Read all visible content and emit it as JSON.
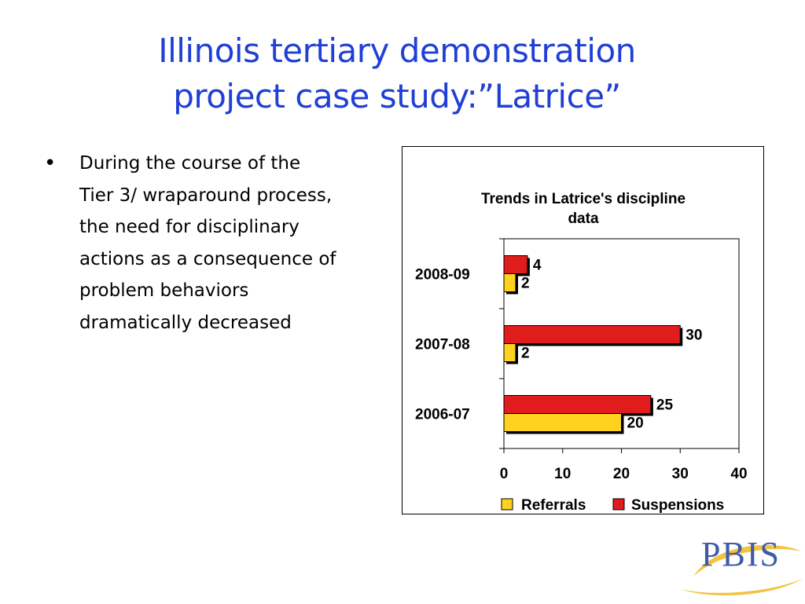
{
  "slide": {
    "title_lines": [
      "Illinois tertiary demonstration",
      "project case study:”Latrice”"
    ],
    "bullet_symbol": "•",
    "bullet_lines": [
      "During the course of the",
      "Tier 3/ wraparound process,",
      "the need for disciplinary",
      "actions as a consequence of",
      "problem behaviors",
      "dramatically decreased"
    ],
    "title_color": "#1f3fd6"
  },
  "logo": {
    "text": "PBIS",
    "icon": "pbis-star-swoosh-logo",
    "color": "#3f5aa8",
    "accent": "#f0b820"
  },
  "chart_data": {
    "type": "bar",
    "orientation": "horizontal",
    "title_lines": [
      "Trends in Latrice's discipline",
      "data"
    ],
    "categories": [
      "2008-09",
      "2007-08",
      "2006-07"
    ],
    "series": [
      {
        "name": "Suspensions",
        "color": "#e01c1c",
        "values": [
          4,
          30,
          25
        ]
      },
      {
        "name": "Referrals",
        "color": "#ffd21f",
        "values": [
          2,
          2,
          20
        ]
      }
    ],
    "xlim": [
      0,
      40
    ],
    "x_ticks": [
      "0",
      "10",
      "20",
      "30",
      "40"
    ],
    "legend_order": [
      "Referrals",
      "Suspensions"
    ],
    "legend_position": "bottom",
    "grid": false,
    "data_labels": true
  }
}
